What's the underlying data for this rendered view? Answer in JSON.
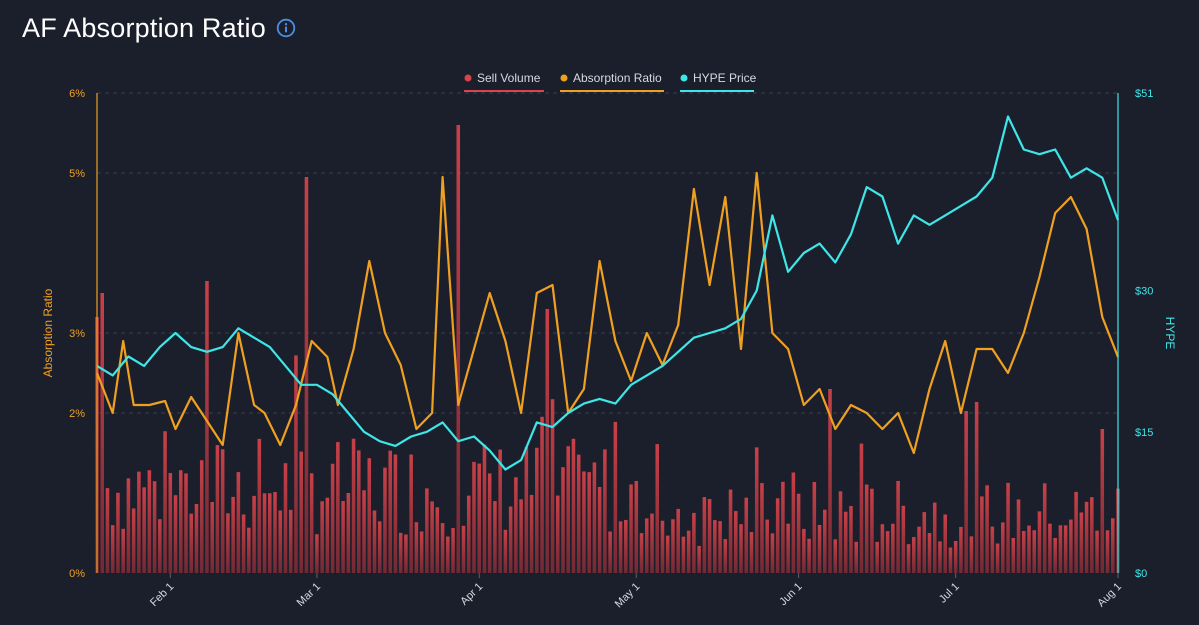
{
  "header": {
    "title": "AF Absorption Ratio",
    "info_icon": "info-circle-icon"
  },
  "colors": {
    "background": "#1b1f2b",
    "sell_volume": "#d9434a",
    "absorption_ratio": "#f0a020",
    "hype_price": "#3ee6e8",
    "grid": "#3a3f4d"
  },
  "chart_data": {
    "type": "bar+line",
    "x_ticks": [
      "Feb 1",
      "Mar 1",
      "Apr 1",
      "May 1",
      "Jun 1",
      "Jul 1",
      "Aug 1"
    ],
    "x_range": [
      "2025-01-18",
      "2025-08-01"
    ],
    "legend": {
      "position": "top-center",
      "items": [
        "Sell Volume",
        "Absorption Ratio",
        "HYPE Price"
      ]
    },
    "left_axis": {
      "label": "Absorption Ratio",
      "ticks": [
        "0%",
        "2%",
        "3%",
        "5%",
        "6%"
      ],
      "range": [
        0,
        6
      ]
    },
    "right_axis": {
      "label": "HYPE",
      "ticks": [
        "$0",
        "$15",
        "$30",
        "$51"
      ],
      "range": [
        0,
        51
      ]
    },
    "grid": true,
    "series": [
      {
        "name": "Absorption Ratio",
        "type": "line",
        "axis": "left",
        "points": [
          [
            "2025-01-18",
            2.5
          ],
          [
            "2025-01-21",
            2.0
          ],
          [
            "2025-01-23",
            2.9
          ],
          [
            "2025-01-25",
            2.1
          ],
          [
            "2025-01-28",
            2.1
          ],
          [
            "2025-01-31",
            2.15
          ],
          [
            "2025-02-02",
            1.8
          ],
          [
            "2025-02-05",
            2.2
          ],
          [
            "2025-02-08",
            1.9
          ],
          [
            "2025-02-11",
            1.6
          ],
          [
            "2025-02-14",
            3.0
          ],
          [
            "2025-02-17",
            2.1
          ],
          [
            "2025-02-19",
            2.0
          ],
          [
            "2025-02-22",
            1.6
          ],
          [
            "2025-02-25",
            2.1
          ],
          [
            "2025-02-28",
            2.9
          ],
          [
            "2025-03-03",
            2.7
          ],
          [
            "2025-03-05",
            2.1
          ],
          [
            "2025-03-08",
            2.8
          ],
          [
            "2025-03-11",
            3.9
          ],
          [
            "2025-03-14",
            3.0
          ],
          [
            "2025-03-17",
            2.6
          ],
          [
            "2025-03-20",
            1.8
          ],
          [
            "2025-03-23",
            2.0
          ],
          [
            "2025-03-25",
            4.95
          ],
          [
            "2025-03-28",
            2.1
          ],
          [
            "2025-03-31",
            2.8
          ],
          [
            "2025-04-03",
            3.5
          ],
          [
            "2025-04-06",
            2.9
          ],
          [
            "2025-04-09",
            2.0
          ],
          [
            "2025-04-12",
            3.5
          ],
          [
            "2025-04-15",
            3.6
          ],
          [
            "2025-04-18",
            2.0
          ],
          [
            "2025-04-21",
            2.3
          ],
          [
            "2025-04-24",
            3.9
          ],
          [
            "2025-04-27",
            2.9
          ],
          [
            "2025-04-30",
            2.4
          ],
          [
            "2025-05-03",
            3.0
          ],
          [
            "2025-05-06",
            2.6
          ],
          [
            "2025-05-09",
            3.1
          ],
          [
            "2025-05-12",
            4.8
          ],
          [
            "2025-05-15",
            3.6
          ],
          [
            "2025-05-18",
            4.7
          ],
          [
            "2025-05-21",
            2.8
          ],
          [
            "2025-05-24",
            5.0
          ],
          [
            "2025-05-27",
            3.0
          ],
          [
            "2025-05-30",
            2.8
          ],
          [
            "2025-06-02",
            2.1
          ],
          [
            "2025-06-05",
            2.3
          ],
          [
            "2025-06-08",
            1.8
          ],
          [
            "2025-06-11",
            2.1
          ],
          [
            "2025-06-14",
            2.0
          ],
          [
            "2025-06-17",
            1.8
          ],
          [
            "2025-06-20",
            2.0
          ],
          [
            "2025-06-23",
            1.5
          ],
          [
            "2025-06-26",
            2.3
          ],
          [
            "2025-06-29",
            2.9
          ],
          [
            "2025-07-02",
            2.0
          ],
          [
            "2025-07-05",
            2.8
          ],
          [
            "2025-07-08",
            2.8
          ],
          [
            "2025-07-11",
            2.5
          ],
          [
            "2025-07-14",
            3.0
          ],
          [
            "2025-07-17",
            3.7
          ],
          [
            "2025-07-20",
            4.5
          ],
          [
            "2025-07-23",
            4.7
          ],
          [
            "2025-07-26",
            4.3
          ],
          [
            "2025-07-29",
            3.2
          ],
          [
            "2025-08-01",
            2.7
          ]
        ]
      },
      {
        "name": "HYPE Price",
        "type": "line",
        "axis": "right",
        "points": [
          [
            "2025-01-18",
            22
          ],
          [
            "2025-01-21",
            21
          ],
          [
            "2025-01-24",
            23
          ],
          [
            "2025-01-27",
            22
          ],
          [
            "2025-01-30",
            24
          ],
          [
            "2025-02-02",
            25.5
          ],
          [
            "2025-02-05",
            24
          ],
          [
            "2025-02-08",
            23.5
          ],
          [
            "2025-02-11",
            24
          ],
          [
            "2025-02-14",
            26
          ],
          [
            "2025-02-17",
            25
          ],
          [
            "2025-02-20",
            24
          ],
          [
            "2025-02-23",
            22
          ],
          [
            "2025-02-26",
            20
          ],
          [
            "2025-03-01",
            20
          ],
          [
            "2025-03-04",
            19
          ],
          [
            "2025-03-07",
            17
          ],
          [
            "2025-03-10",
            15
          ],
          [
            "2025-03-13",
            14
          ],
          [
            "2025-03-16",
            13.5
          ],
          [
            "2025-03-19",
            14.5
          ],
          [
            "2025-03-22",
            15
          ],
          [
            "2025-03-25",
            16
          ],
          [
            "2025-03-28",
            14
          ],
          [
            "2025-03-31",
            14.5
          ],
          [
            "2025-04-03",
            13
          ],
          [
            "2025-04-06",
            11
          ],
          [
            "2025-04-09",
            12
          ],
          [
            "2025-04-12",
            16
          ],
          [
            "2025-04-15",
            15.5
          ],
          [
            "2025-04-18",
            17
          ],
          [
            "2025-04-21",
            18
          ],
          [
            "2025-04-24",
            18.5
          ],
          [
            "2025-04-27",
            18
          ],
          [
            "2025-04-30",
            20
          ],
          [
            "2025-05-03",
            21
          ],
          [
            "2025-05-06",
            22
          ],
          [
            "2025-05-09",
            23.5
          ],
          [
            "2025-05-12",
            25
          ],
          [
            "2025-05-15",
            25.5
          ],
          [
            "2025-05-18",
            26
          ],
          [
            "2025-05-21",
            27
          ],
          [
            "2025-05-24",
            30
          ],
          [
            "2025-05-27",
            38
          ],
          [
            "2025-05-30",
            32
          ],
          [
            "2025-06-02",
            34
          ],
          [
            "2025-06-05",
            35
          ],
          [
            "2025-06-08",
            33
          ],
          [
            "2025-06-11",
            36
          ],
          [
            "2025-06-14",
            41
          ],
          [
            "2025-06-17",
            40
          ],
          [
            "2025-06-20",
            35
          ],
          [
            "2025-06-23",
            38
          ],
          [
            "2025-06-26",
            37
          ],
          [
            "2025-06-29",
            38
          ],
          [
            "2025-07-02",
            39
          ],
          [
            "2025-07-05",
            40
          ],
          [
            "2025-07-08",
            42
          ],
          [
            "2025-07-11",
            48.5
          ],
          [
            "2025-07-14",
            45
          ],
          [
            "2025-07-17",
            44.5
          ],
          [
            "2025-07-20",
            45
          ],
          [
            "2025-07-23",
            42
          ],
          [
            "2025-07-26",
            43
          ],
          [
            "2025-07-29",
            42
          ],
          [
            "2025-08-01",
            37.5
          ]
        ]
      },
      {
        "name": "Sell Volume",
        "type": "bar",
        "axis": "left",
        "peaks": [
          [
            "2025-01-18",
            3.2
          ],
          [
            "2025-01-19",
            3.5
          ],
          [
            "2025-02-08",
            3.65
          ],
          [
            "2025-02-27",
            4.95
          ],
          [
            "2025-03-28",
            5.6
          ],
          [
            "2025-04-14",
            3.3
          ],
          [
            "2025-06-07",
            2.3
          ],
          [
            "2025-07-29",
            1.8
          ]
        ]
      }
    ]
  }
}
